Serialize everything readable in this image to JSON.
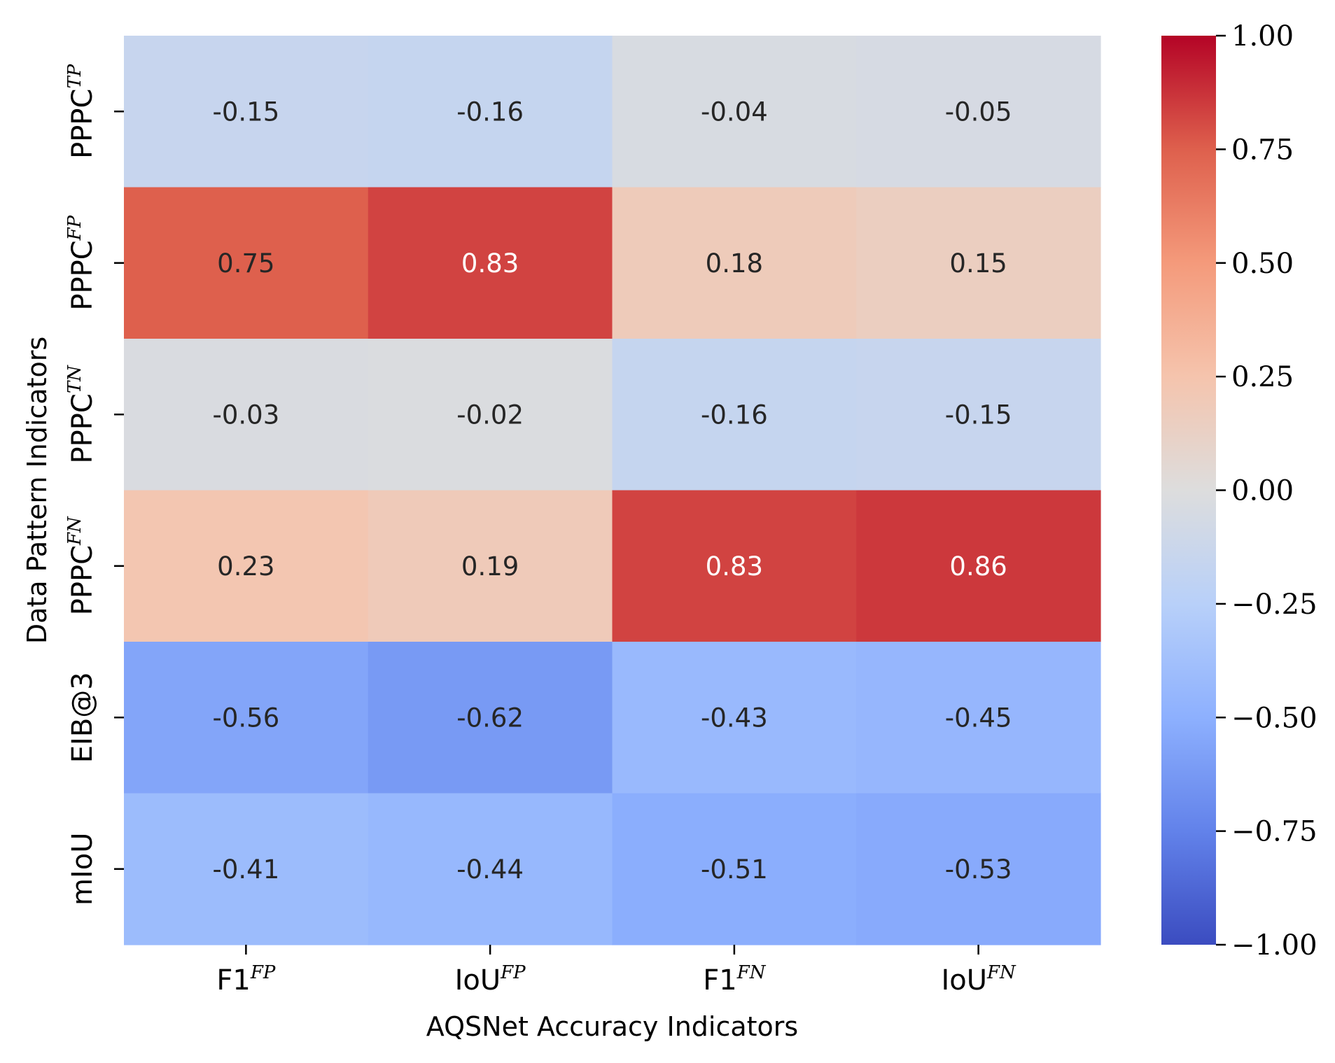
{
  "chart_data": {
    "type": "heatmap",
    "title": "",
    "xlabel": "AQSNet Accuracy Indicators",
    "ylabel": "Data Pattern Indicators",
    "x_categories": [
      {
        "base": "F1",
        "sup": "FP"
      },
      {
        "base": "IoU",
        "sup": "FP"
      },
      {
        "base": "F1",
        "sup": "FN"
      },
      {
        "base": "IoU",
        "sup": "FN"
      }
    ],
    "y_categories": [
      {
        "base": "PPPC",
        "sup": "TP"
      },
      {
        "base": "PPPC",
        "sup": "FP"
      },
      {
        "base": "PPPC",
        "sup": "TN"
      },
      {
        "base": "PPPC",
        "sup": "FN"
      },
      {
        "base": "EIB@3",
        "sup": ""
      },
      {
        "base": "mIoU",
        "sup": ""
      }
    ],
    "values": [
      [
        -0.15,
        -0.16,
        -0.04,
        -0.05
      ],
      [
        0.75,
        0.83,
        0.18,
        0.15
      ],
      [
        -0.03,
        -0.02,
        -0.16,
        -0.15
      ],
      [
        0.23,
        0.19,
        0.83,
        0.86
      ],
      [
        -0.56,
        -0.62,
        -0.43,
        -0.45
      ],
      [
        -0.41,
        -0.44,
        -0.51,
        -0.53
      ]
    ],
    "colormap": "coolwarm",
    "vmin": -1.0,
    "vmax": 1.0,
    "colorbar": {
      "ticks": [
        1.0,
        0.75,
        0.5,
        0.25,
        0.0,
        -0.25,
        -0.5,
        -0.75,
        -1.0
      ],
      "tick_labels": [
        "1.00",
        "0.75",
        "0.50",
        "0.25",
        "0.00",
        "−0.25",
        "−0.50",
        "−0.75",
        "−1.00"
      ]
    },
    "annot_format": ".2f"
  }
}
